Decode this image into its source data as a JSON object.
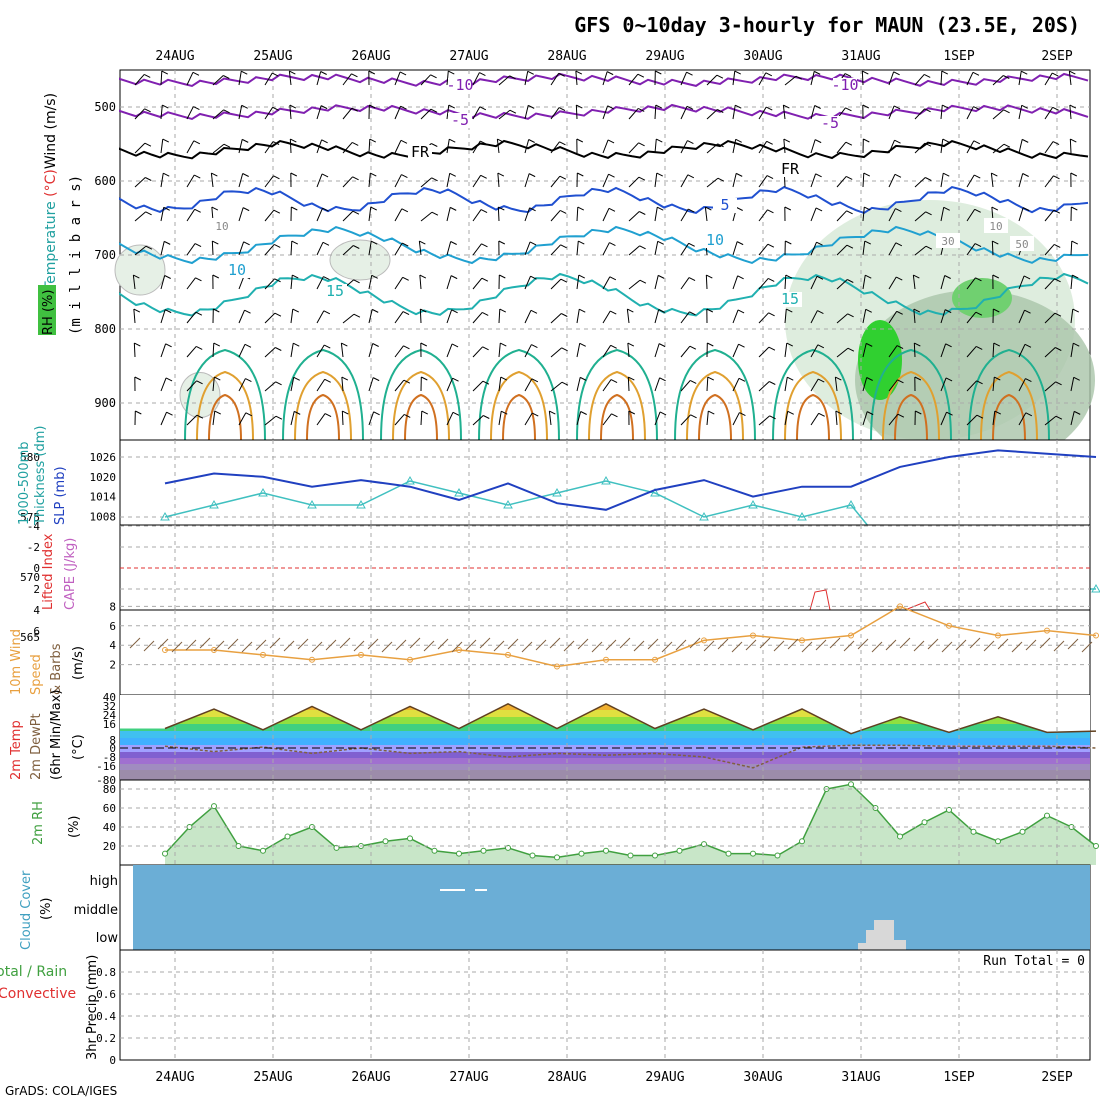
{
  "title": "GFS 0~10day 3-hourly for MAUN (23.5E, 20S)",
  "footer": "GrADS: COLA/IGES",
  "dates": [
    "24AUG",
    "25AUG",
    "26AUG",
    "27AUG",
    "28AUG",
    "29AUG",
    "30AUG",
    "31AUG",
    "1SEP",
    "2SEP"
  ],
  "panels": {
    "upper": {
      "ylabel_wind": "Wind (m/s)",
      "ylabel_temp": "Temperature (°C)",
      "ylabel_rh": "RH (%)",
      "ylabel_pressure": "(m i l l i b a r s)",
      "yticks": [
        "500",
        "600",
        "700",
        "800",
        "900"
      ],
      "contour_labels": [
        "-10",
        "-10",
        "-5",
        "-5",
        "FR",
        "FR",
        "5",
        "10",
        "10",
        "15",
        "15",
        "10",
        "30",
        "10",
        "50"
      ]
    },
    "thickness": {
      "ylabel_left": "Thickness (dm)",
      "ylabel_left2": "1000-500mb",
      "ylabel_right": "SLP (mb)",
      "left_ticks": [
        "580",
        "575",
        "570",
        "565"
      ],
      "right_ticks": [
        "1026",
        "1020",
        "1014",
        "1008"
      ]
    },
    "stability": {
      "ylabel_li": "Lifted Index",
      "ylabel_cape": "CAPE (J/kg)",
      "ticks": [
        "-4",
        "-2",
        "0",
        "2",
        "4",
        "6"
      ]
    },
    "wind10m": {
      "ylabel1": "10m Wind",
      "ylabel2": "Speed",
      "ylabel3": "& Barbs",
      "units": "(m/s)",
      "ticks": [
        "8",
        "6",
        "4",
        "2"
      ]
    },
    "temp2m": {
      "ylabel1": "2m Temp",
      "ylabel2": "2m DewPt",
      "ylabel3": "(6hr Min/Max)",
      "units": "(°C)",
      "ticks": [
        "40",
        "32",
        "24",
        "16",
        "8",
        "0",
        "-8",
        "-16",
        "-80"
      ]
    },
    "rh2m": {
      "ylabel": "2m RH",
      "units": "(%)",
      "ticks": [
        "80",
        "60",
        "40",
        "20"
      ]
    },
    "cloud": {
      "ylabel": "Cloud Cover",
      "units": "(%)",
      "levels": [
        "high",
        "middle",
        "low"
      ]
    },
    "precip": {
      "ylabel1": "Total / Rain",
      "ylabel2": "Convective",
      "ylabel3": "3hr Precip (mm)",
      "ticks": [
        "0.8",
        "0.6",
        "0.4",
        "0.2",
        "0"
      ],
      "run_total": "Run Total = 0"
    }
  },
  "colors": {
    "cloud_bg": "#6baed6",
    "thickness_line": "#40c0c0",
    "slp_line": "#2040c0",
    "wind_speed": "#e8a040",
    "rh_green": "#40a040",
    "cape_red": "#e03030"
  },
  "chart_data": [
    {
      "type": "line",
      "panel": "Thickness / SLP",
      "x_days": [
        0,
        0.5,
        1,
        1.5,
        2,
        2.5,
        3,
        3.5,
        4,
        4.5,
        5,
        5.5,
        6,
        6.5,
        7,
        7.5,
        8,
        8.5,
        9,
        9.5
      ],
      "series": [
        {
          "name": "1000-500mb Thickness (dm)",
          "values": [
            575,
            576,
            577,
            576,
            576,
            578,
            577,
            576,
            577,
            578,
            577,
            575,
            576,
            575,
            576,
            571,
            570,
            572,
            569,
            569
          ]
        },
        {
          "name": "SLP (mb)",
          "values": [
            1018,
            1021,
            1020,
            1017,
            1019,
            1017,
            1013,
            1018,
            1012,
            1010,
            1016,
            1019,
            1014,
            1017,
            1017,
            1023,
            1026,
            1028,
            1027,
            1026
          ]
        }
      ]
    },
    {
      "type": "line",
      "panel": "10m Wind Speed",
      "units": "m/s",
      "x_days": [
        0,
        0.5,
        1,
        1.5,
        2,
        2.5,
        3,
        3.5,
        4,
        4.5,
        5,
        5.5,
        6,
        6.5,
        7,
        7.5,
        8,
        8.5,
        9,
        9.5
      ],
      "values": [
        3.5,
        3.5,
        3,
        2.5,
        3,
        2.5,
        3.5,
        3,
        1.8,
        2.5,
        2.5,
        4.5,
        5,
        4.5,
        5,
        8,
        6,
        5,
        5.5,
        5
      ]
    },
    {
      "type": "line",
      "panel": "2m Temp",
      "units": "°C",
      "x_days": [
        0,
        0.5,
        1,
        1.5,
        2,
        2.5,
        3,
        3.5,
        4,
        4.5,
        5,
        5.5,
        6,
        6.5,
        7,
        7.5,
        8,
        8.5,
        9,
        9.5
      ],
      "series": [
        {
          "name": "2m Temp",
          "values": [
            15,
            30,
            14,
            32,
            14,
            32,
            15,
            34,
            15,
            34,
            15,
            30,
            14,
            30,
            11,
            24,
            12,
            24,
            12,
            13
          ]
        },
        {
          "name": "2m DewPt",
          "values": [
            2,
            -4,
            1,
            -6,
            0,
            -6,
            -4,
            -10,
            -6,
            -8,
            -6,
            -10,
            -22,
            1,
            3,
            3,
            2,
            2,
            2,
            0
          ]
        }
      ]
    },
    {
      "type": "area",
      "panel": "2m RH",
      "units": "%",
      "x_days": [
        0,
        0.25,
        0.5,
        0.75,
        1,
        1.25,
        1.5,
        1.75,
        2,
        2.25,
        2.5,
        2.75,
        3,
        3.25,
        3.5,
        3.75,
        4,
        4.25,
        4.5,
        4.75,
        5,
        5.25,
        5.5,
        5.75,
        6,
        6.25,
        6.5,
        6.75,
        7,
        7.25,
        7.5,
        7.75,
        8,
        8.25,
        8.5,
        8.75,
        9,
        9.25,
        9.5
      ],
      "values": [
        12,
        40,
        62,
        20,
        15,
        30,
        40,
        18,
        20,
        25,
        28,
        15,
        12,
        15,
        18,
        10,
        8,
        12,
        15,
        10,
        10,
        15,
        22,
        12,
        12,
        10,
        25,
        80,
        85,
        60,
        30,
        45,
        58,
        35,
        25,
        35,
        52,
        40,
        20
      ]
    },
    {
      "type": "bar",
      "panel": "3hr Precip",
      "units": "mm",
      "values": [],
      "run_total": 0
    }
  ]
}
